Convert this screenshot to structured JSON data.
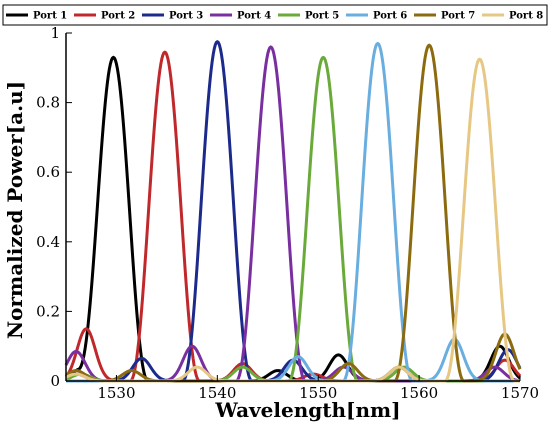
{
  "chart_data": {
    "type": "line",
    "xlabel": "Wavelength[nm]",
    "ylabel": "Normalized Power[a.u]",
    "xlim": [
      1525,
      1570
    ],
    "ylim": [
      0,
      1
    ],
    "xticks": [
      1530,
      1540,
      1550,
      1560,
      1570
    ],
    "xtick_labels": [
      "1530",
      "1540",
      "1550",
      "1560",
      "1570"
    ],
    "yticks": [
      0,
      0.2,
      0.4,
      0.6,
      0.8,
      1
    ],
    "ytick_labels": [
      "0",
      "0.2",
      "0.4",
      "0.6",
      "0.8",
      "1"
    ],
    "legend_position": "top",
    "grid": false,
    "series": [
      {
        "name": "Port 1",
        "color": "#000000",
        "peak_x": 1529.7,
        "peak_y": 0.93,
        "width": 2.2,
        "ripples": [
          [
            1526.5,
            0.035
          ],
          [
            1546.0,
            0.03
          ],
          [
            1552.0,
            0.075
          ],
          [
            1558.0,
            0.04
          ],
          [
            1568.0,
            0.1
          ]
        ]
      },
      {
        "name": "Port 2",
        "color": "#c0292b",
        "peak_x": 1534.8,
        "peak_y": 0.945,
        "width": 2.2,
        "ripples": [
          [
            1527.0,
            0.15
          ],
          [
            1542.5,
            0.05
          ],
          [
            1549.5,
            0.02
          ],
          [
            1568.5,
            0.06
          ]
        ]
      },
      {
        "name": "Port 3",
        "color": "#1c2a8c",
        "peak_x": 1540.0,
        "peak_y": 0.975,
        "width": 2.2,
        "ripples": [
          [
            1526.0,
            0.02
          ],
          [
            1532.5,
            0.065
          ],
          [
            1547.5,
            0.06
          ],
          [
            1568.8,
            0.09
          ]
        ]
      },
      {
        "name": "Port 4",
        "color": "#7a2fa0",
        "peak_x": 1545.3,
        "peak_y": 0.96,
        "width": 2.2,
        "ripples": [
          [
            1526.0,
            0.085
          ],
          [
            1537.5,
            0.1
          ],
          [
            1552.5,
            0.04
          ],
          [
            1567.5,
            0.04
          ]
        ]
      },
      {
        "name": "Port 5",
        "color": "#6aaa3a",
        "peak_x": 1550.5,
        "peak_y": 0.93,
        "width": 2.2,
        "ripples": [
          [
            1526.5,
            0.02
          ],
          [
            1542.5,
            0.04
          ],
          [
            1558.5,
            0.04
          ]
        ]
      },
      {
        "name": "Port 6",
        "color": "#6aaee0",
        "peak_x": 1555.9,
        "peak_y": 0.97,
        "width": 2.2,
        "ripples": [
          [
            1548.0,
            0.07
          ],
          [
            1563.5,
            0.12
          ]
        ]
      },
      {
        "name": "Port 7",
        "color": "#8b6a10",
        "peak_x": 1561.0,
        "peak_y": 0.965,
        "width": 2.2,
        "ripples": [
          [
            1526.0,
            0.03
          ],
          [
            1531.5,
            0.03
          ],
          [
            1553.0,
            0.05
          ],
          [
            1568.5,
            0.135
          ]
        ]
      },
      {
        "name": "Port 8",
        "color": "#e6c884",
        "peak_x": 1566.0,
        "peak_y": 0.925,
        "width": 2.2,
        "ripples": [
          [
            1526.0,
            0.02
          ],
          [
            1538.0,
            0.04
          ],
          [
            1558.0,
            0.04
          ]
        ]
      }
    ]
  }
}
